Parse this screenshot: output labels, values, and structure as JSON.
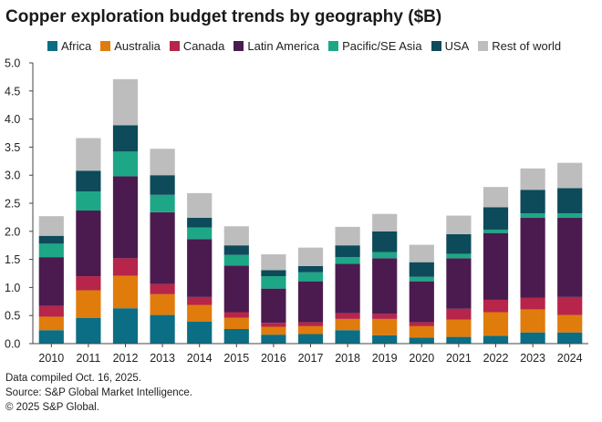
{
  "header": {
    "title": "Copper exploration budget trends by geography ($B)"
  },
  "colors": {
    "Africa": "#0b6e84",
    "Australia": "#e07c0c",
    "Canada": "#b7254a",
    "Latin America": "#4b1b4f",
    "Pacific/SE Asia": "#1ea786",
    "USA": "#0d4a5a",
    "Rest of world": "#bdbdbd"
  },
  "chart_data": {
    "type": "bar",
    "stacked": true,
    "title": "Copper exploration budget trends by geography ($B)",
    "xlabel": "",
    "ylabel": "",
    "ylim": [
      0,
      5
    ],
    "yticks": [
      "0.0",
      "0.5",
      "1.0",
      "1.5",
      "2.0",
      "2.5",
      "3.0",
      "3.5",
      "4.0",
      "4.5",
      "5.0"
    ],
    "grid": false,
    "legend_position": "top",
    "categories": [
      "2010",
      "2011",
      "2012",
      "2013",
      "2014",
      "2015",
      "2016",
      "2017",
      "2018",
      "2019",
      "2020",
      "2021",
      "2022",
      "2023",
      "2024"
    ],
    "series": [
      {
        "name": "Africa",
        "values": [
          0.24,
          0.46,
          0.63,
          0.51,
          0.39,
          0.26,
          0.16,
          0.17,
          0.24,
          0.15,
          0.11,
          0.12,
          0.14,
          0.2,
          0.2
        ]
      },
      {
        "name": "Australia",
        "values": [
          0.24,
          0.49,
          0.58,
          0.37,
          0.3,
          0.2,
          0.14,
          0.14,
          0.2,
          0.29,
          0.2,
          0.31,
          0.42,
          0.41,
          0.31
        ]
      },
      {
        "name": "Canada",
        "values": [
          0.19,
          0.25,
          0.31,
          0.18,
          0.14,
          0.1,
          0.07,
          0.07,
          0.1,
          0.09,
          0.07,
          0.19,
          0.22,
          0.21,
          0.32
        ]
      },
      {
        "name": "Latin America",
        "values": [
          0.87,
          1.17,
          1.46,
          1.28,
          1.03,
          0.83,
          0.61,
          0.73,
          0.88,
          0.99,
          0.73,
          0.9,
          1.19,
          1.42,
          1.41
        ]
      },
      {
        "name": "Pacific/SE Asia",
        "values": [
          0.24,
          0.34,
          0.44,
          0.31,
          0.21,
          0.19,
          0.22,
          0.16,
          0.12,
          0.11,
          0.08,
          0.08,
          0.06,
          0.08,
          0.08
        ]
      },
      {
        "name": "USA",
        "values": [
          0.14,
          0.37,
          0.47,
          0.35,
          0.17,
          0.17,
          0.11,
          0.11,
          0.21,
          0.37,
          0.26,
          0.35,
          0.4,
          0.42,
          0.45
        ]
      },
      {
        "name": "Rest of world",
        "values": [
          0.35,
          0.58,
          0.82,
          0.47,
          0.44,
          0.34,
          0.28,
          0.33,
          0.33,
          0.31,
          0.31,
          0.33,
          0.36,
          0.38,
          0.45
        ]
      }
    ]
  },
  "footnotes": {
    "line1": "Data compiled Oct. 16, 2025.",
    "line2": "Source: S&P Global Market Intelligence.",
    "line3": "© 2025 S&P Global."
  }
}
